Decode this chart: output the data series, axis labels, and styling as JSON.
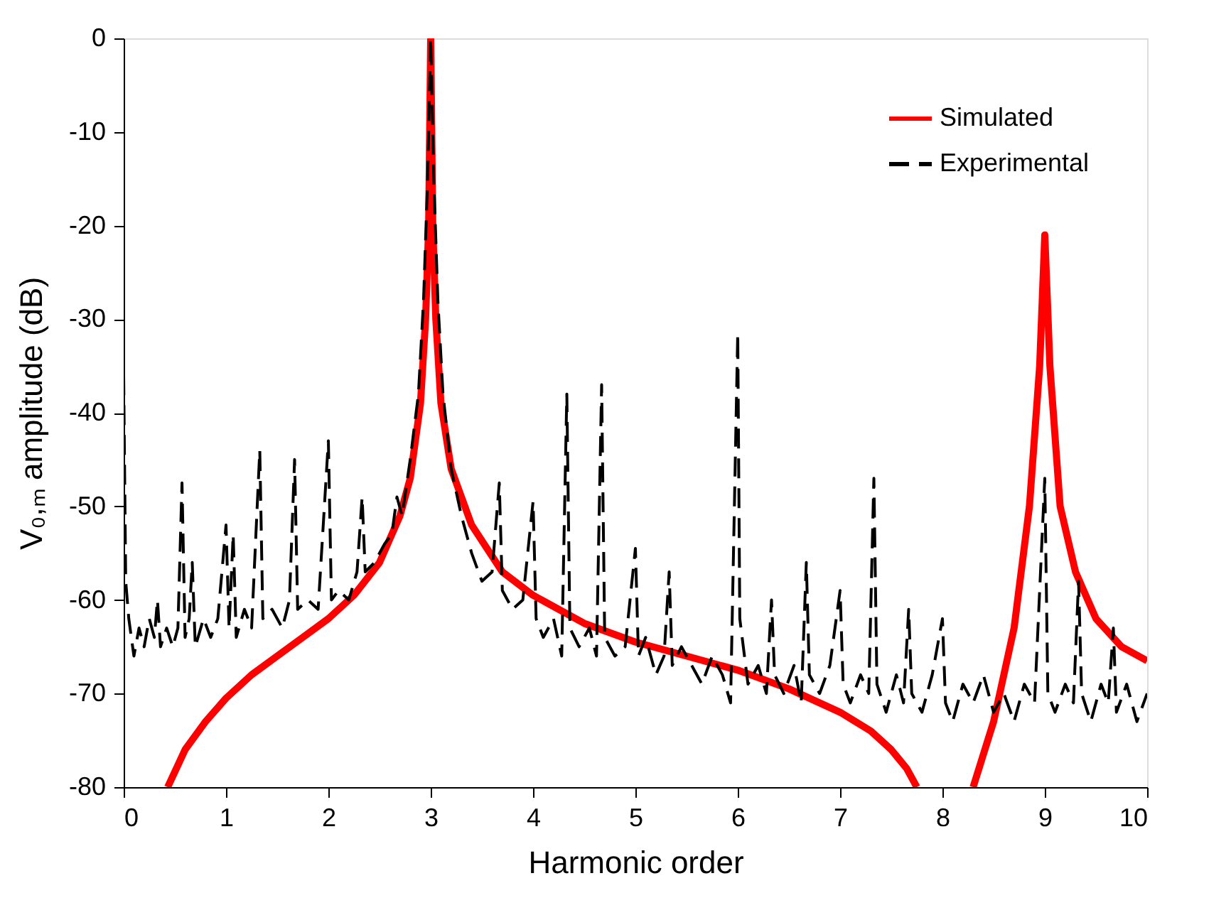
{
  "chart_data": {
    "type": "line",
    "xlabel": "Harmonic order",
    "ylabel": "V₀,ₘ amplitude (dB)",
    "xlim": [
      0,
      10
    ],
    "ylim": [
      -80,
      0
    ],
    "xticks": [
      0,
      1,
      2,
      3,
      4,
      5,
      6,
      7,
      8,
      9,
      10
    ],
    "yticks": [
      -80,
      -70,
      -60,
      -50,
      -40,
      -30,
      -20,
      -10,
      0
    ],
    "grid": false,
    "legend": "top right",
    "marker": "none",
    "series": [
      {
        "name": "Simulated",
        "color": "#ff0000",
        "line_style": "solid",
        "x": [
          0.43,
          0.6,
          0.8,
          1.0,
          1.25,
          1.5,
          1.75,
          2.0,
          2.25,
          2.5,
          2.7,
          2.8,
          2.9,
          2.95,
          2.98,
          3.0,
          3.02,
          3.05,
          3.1,
          3.2,
          3.4,
          3.7,
          4.0,
          4.5,
          5.0,
          5.5,
          6.0,
          6.5,
          7.0,
          7.3,
          7.5,
          7.65,
          7.75,
          8.0,
          8.3,
          8.5,
          8.7,
          8.85,
          8.95,
          9.0,
          9.05,
          9.15,
          9.3,
          9.5,
          9.75,
          10.0
        ],
        "values": [
          -80,
          -76,
          -73,
          -70.5,
          -68,
          -66,
          -64,
          -62,
          -59.5,
          -56,
          -51,
          -47,
          -39,
          -30,
          -20,
          0,
          -20,
          -30,
          -39,
          -46,
          -52,
          -57,
          -59.5,
          -62.5,
          -64.5,
          -66,
          -67.5,
          -69.5,
          -72,
          -74,
          -76,
          -78,
          -80,
          null,
          -80,
          -73,
          -63,
          -50,
          -35,
          -21,
          -35,
          -50,
          -57,
          -62,
          -65,
          -66.5
        ]
      },
      {
        "name": "Experimental",
        "color": "#000000",
        "line_style": "dashed",
        "x": [
          0,
          0.02,
          0.05,
          0.1,
          0.15,
          0.2,
          0.25,
          0.3,
          0.33,
          0.36,
          0.42,
          0.48,
          0.53,
          0.57,
          0.6,
          0.64,
          0.67,
          0.7,
          0.78,
          0.85,
          0.92,
          1.0,
          1.03,
          1.07,
          1.1,
          1.18,
          1.25,
          1.33,
          1.36,
          1.45,
          1.55,
          1.62,
          1.67,
          1.7,
          1.8,
          1.9,
          2.0,
          2.03,
          2.1,
          2.2,
          2.28,
          2.33,
          2.36,
          2.45,
          2.55,
          2.62,
          2.67,
          2.72,
          2.8,
          2.88,
          2.93,
          2.97,
          3.0,
          3.03,
          3.07,
          3.12,
          3.2,
          3.3,
          3.4,
          3.5,
          3.6,
          3.67,
          3.7,
          3.8,
          3.9,
          4.0,
          4.03,
          4.1,
          4.2,
          4.28,
          4.33,
          4.36,
          4.45,
          4.55,
          4.62,
          4.67,
          4.7,
          4.8,
          4.9,
          5.0,
          5.03,
          5.1,
          5.2,
          5.28,
          5.33,
          5.36,
          5.45,
          5.55,
          5.65,
          5.75,
          5.85,
          5.93,
          6.0,
          6.02,
          6.1,
          6.2,
          6.28,
          6.33,
          6.36,
          6.45,
          6.55,
          6.62,
          6.67,
          6.7,
          6.8,
          6.9,
          7.0,
          7.03,
          7.1,
          7.2,
          7.28,
          7.33,
          7.36,
          7.45,
          7.55,
          7.62,
          7.67,
          7.7,
          7.8,
          7.9,
          8.0,
          8.03,
          8.1,
          8.2,
          8.3,
          8.4,
          8.5,
          8.6,
          8.7,
          8.8,
          8.9,
          9.0,
          9.03,
          9.1,
          9.2,
          9.28,
          9.33,
          9.36,
          9.45,
          9.55,
          9.62,
          9.67,
          9.7,
          9.8,
          9.9,
          10.0
        ],
        "values": [
          -36,
          -58,
          -62,
          -66,
          -63,
          -65,
          -62,
          -64,
          -60,
          -65,
          -63,
          -65,
          -63,
          -47.5,
          -64,
          -62,
          -56,
          -65,
          -62,
          -64,
          -62,
          -52,
          -63,
          -53,
          -64,
          -61,
          -63,
          -44,
          -62,
          -61,
          -63,
          -60,
          -45,
          -61,
          -60,
          -61,
          -43,
          -60,
          -59,
          -60,
          -57,
          -49,
          -57,
          -56,
          -54,
          -53,
          -49,
          -51,
          -45,
          -38,
          -28,
          -15,
          0,
          -15,
          -28,
          -38,
          -46,
          -51,
          -55,
          -58,
          -57,
          -47.5,
          -59,
          -61,
          -60,
          -49.5,
          -62,
          -64,
          -62,
          -66,
          -38,
          -63,
          -65,
          -63,
          -66,
          -37,
          -64,
          -66,
          -65,
          -54.5,
          -66,
          -64,
          -68,
          -66,
          -57,
          -67,
          -65,
          -67,
          -69,
          -66,
          -68,
          -71,
          -31.5,
          -62,
          -69,
          -67,
          -70,
          -60,
          -68,
          -70,
          -67,
          -71,
          -56,
          -68,
          -70,
          -67,
          -59,
          -69,
          -71,
          -68,
          -70,
          -47,
          -69,
          -72,
          -68,
          -71,
          -61,
          -70,
          -72,
          -68,
          -62,
          -71,
          -73,
          -69,
          -71,
          -68,
          -72,
          -70,
          -73,
          -69,
          -71,
          -47,
          -70,
          -72,
          -69,
          -71,
          -58,
          -70,
          -73,
          -69,
          -71,
          -63,
          -72,
          -69,
          -73,
          -70
        ]
      }
    ]
  }
}
